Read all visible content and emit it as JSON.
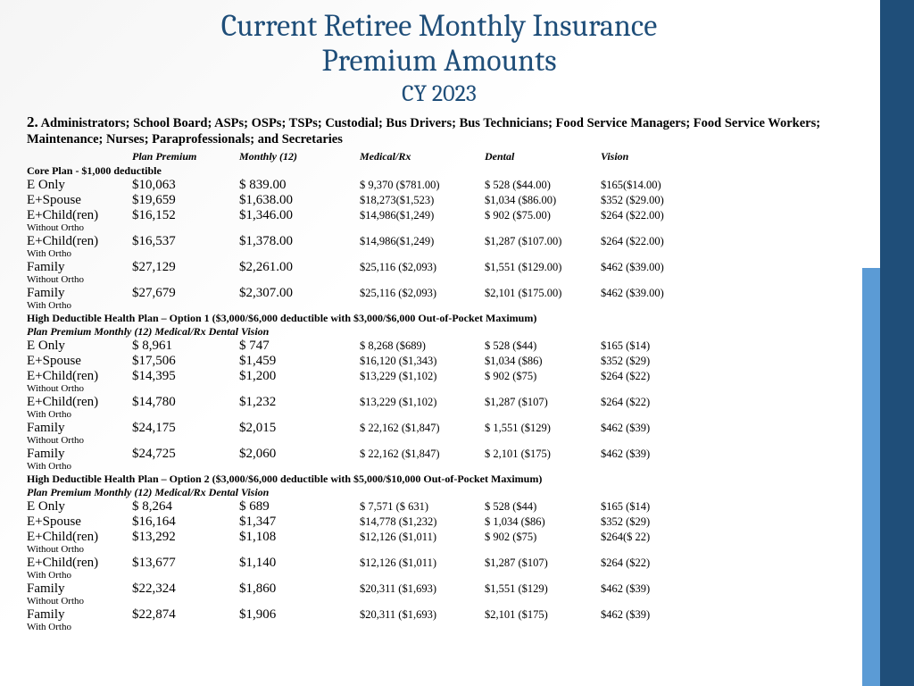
{
  "title_line1": "Current Retiree Monthly Insurance",
  "title_line2": "Premium Amounts",
  "subtitle": "CY 2023",
  "group_num": "2.",
  "group_text": " Administrators; School Board; ASPs; OSPs; TSPs; Custodial; Bus Drivers; Bus Technicians; Food Service Managers; Food Service Workers; Maintenance; Nurses; Paraprofessionals; and Secretaries",
  "columns": [
    "",
    "Plan Premium",
    "Monthly (12)",
    "Medical/Rx",
    "Dental",
    "Vision"
  ],
  "sections": [
    {
      "title": "Core Plan - $1,000 deductible",
      "sub": "",
      "rows": [
        {
          "tier": "E Only",
          "note": "",
          "premium": "$10,063",
          "monthly": "$ 839.00",
          "med": "$ 9,370 ($781.00)",
          "dental": "$ 528 ($44.00)",
          "vision": "$165($14.00)"
        },
        {
          "tier": "E+Spouse",
          "note": "",
          "premium": "$19,659",
          "monthly": "$1,638.00",
          "med": "$18,273($1,523)",
          "dental": "$1,034 ($86.00)",
          "vision": "$352 ($29.00)"
        },
        {
          "tier": "E+Child(ren)",
          "note": "Without Ortho",
          "premium": "$16,152",
          "monthly": "$1,346.00",
          "med": "$14,986($1,249)",
          "dental": "$ 902 ($75.00)",
          "vision": "$264 ($22.00)"
        },
        {
          "tier": "E+Child(ren)",
          "note": "With Ortho",
          "premium": "$16,537",
          "monthly": "$1,378.00",
          "med": "$14,986($1,249)",
          "dental": "$1,287 ($107.00)",
          "vision": "$264 ($22.00)"
        },
        {
          "tier": "Family",
          "note": "Without Ortho",
          "premium": "$27,129",
          "monthly": "$2,261.00",
          "med": "$25,116 ($2,093)",
          "dental": "$1,551 ($129.00)",
          "vision": "$462 ($39.00)"
        },
        {
          "tier": "Family",
          "note": "With Ortho",
          "premium": "$27,679",
          "monthly": "$2,307.00",
          "med": "$25,116 ($2,093)",
          "dental": "$2,101 ($175.00)",
          "vision": "$462 ($39.00)"
        }
      ]
    },
    {
      "title": "High Deductible Health Plan – Option 1 ($3,000/$6,000 deductible with $3,000/$6,000 Out-of-Pocket Maximum)",
      "sub": "Plan Premium Monthly (12) Medical/Rx Dental Vision",
      "rows": [
        {
          "tier": "E Only",
          "note": "",
          "premium": "$ 8,961",
          "monthly": "$ 747",
          "med": "$ 8,268 ($689)",
          "dental": "$ 528 ($44)",
          "vision": "$165 ($14)"
        },
        {
          "tier": "E+Spouse",
          "note": "",
          "premium": "$17,506",
          "monthly": "$1,459",
          "med": "$16,120 ($1,343)",
          "dental": "$1,034 ($86)",
          "vision": "$352 ($29)"
        },
        {
          "tier": "E+Child(ren)",
          "note": "Without Ortho",
          "premium": "$14,395",
          "monthly": "$1,200",
          "med": "$13,229 ($1,102)",
          "dental": "$ 902 ($75)",
          "vision": "$264 ($22)"
        },
        {
          "tier": "E+Child(ren)",
          "note": "With Ortho",
          "premium": "$14,780",
          "monthly": "$1,232",
          "med": "$13,229 ($1,102)",
          "dental": "$1,287 ($107)",
          "vision": " $264 ($22)"
        },
        {
          "tier": "Family",
          "note": "Without Ortho",
          "premium": "$24,175",
          "monthly": "$2,015",
          "med": "$ 22,162 ($1,847)",
          "dental": "$ 1,551 ($129)",
          "vision": "$462 ($39)"
        },
        {
          "tier": "Family",
          "note": "With Ortho",
          "premium": "$24,725",
          "monthly": "$2,060",
          "med": "$ 22,162 ($1,847)",
          "dental": "$ 2,101 ($175)",
          "vision": "$462 ($39)"
        }
      ]
    },
    {
      "title": "High Deductible Health Plan – Option 2 ($3,000/$6,000 deductible with $5,000/$10,000 Out-of-Pocket Maximum)",
      "sub": "Plan Premium Monthly (12) Medical/Rx Dental Vision",
      "rows": [
        {
          "tier": "E Only",
          "note": "",
          "premium": "$ 8,264",
          "monthly": "$ 689",
          "med": "$ 7,571 ($ 631)",
          "dental": "$ 528 ($44)",
          "vision": "$165 ($14)"
        },
        {
          "tier": "E+Spouse",
          "note": "",
          "premium": "$16,164",
          "monthly": "$1,347",
          "med": "$14,778 ($1,232)",
          "dental": "$ 1,034 ($86)",
          "vision": "$352 ($29)"
        },
        {
          "tier": "E+Child(ren)",
          "note": "Without Ortho",
          "premium": "$13,292",
          "monthly": "$1,108",
          "med": "$12,126 ($1,011)",
          "dental": "$ 902 ($75)",
          "vision": "$264($ 22)"
        },
        {
          "tier": "E+Child(ren)",
          "note": "With Ortho",
          "premium": "$13,677",
          "monthly": "$1,140",
          "med": "$12,126 ($1,011)",
          "dental": "$1,287 ($107)",
          "vision": "$264 ($22)"
        },
        {
          "tier": "Family",
          "note": "Without Ortho",
          "premium": "$22,324",
          "monthly": "$1,860",
          "med": "$20,311 ($1,693)",
          "dental": "$1,551 ($129)",
          "vision": "$462 ($39)"
        },
        {
          "tier": "Family",
          "note": "With Ortho",
          "premium": "$22,874",
          "monthly": "$1,906",
          "med": "$20,311 ($1,693)",
          "dental": "$2,101 ($175)",
          "vision": "$462 ($39)"
        }
      ]
    }
  ]
}
